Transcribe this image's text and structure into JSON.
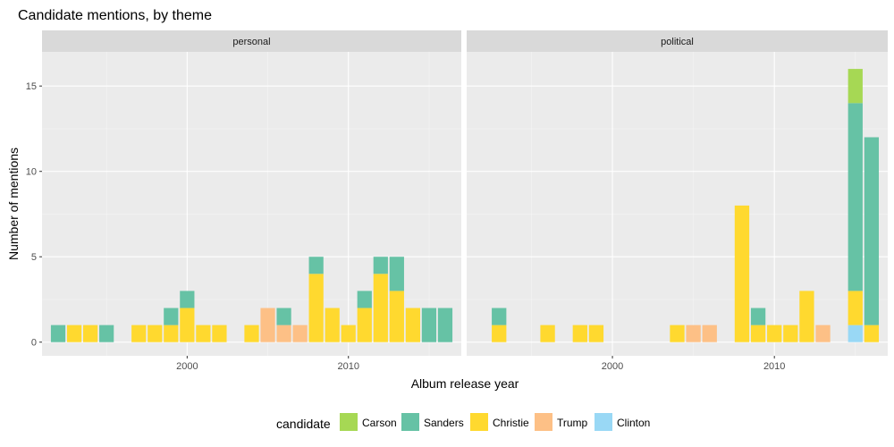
{
  "chart_data": {
    "type": "bar",
    "stacked": true,
    "title": "Candidate mentions, by theme",
    "xlabel": "Album release year",
    "ylabel": "Number of mentions",
    "xlim": [
      1991,
      2017
    ],
    "ylim": [
      -0.8,
      17
    ],
    "x_ticks": [
      2000,
      2010
    ],
    "y_ticks": [
      0,
      5,
      10,
      15
    ],
    "grid": true,
    "legend_position": "bottom",
    "legend_title": "candidate",
    "legend": [
      {
        "name": "Carson",
        "color": "#a6d854"
      },
      {
        "name": "Sanders",
        "color": "#66c2a5"
      },
      {
        "name": "Christie",
        "color": "#ffd92f"
      },
      {
        "name": "Trump",
        "color": "#fdc086"
      },
      {
        "name": "Clinton",
        "color": "#99d8f5"
      }
    ],
    "stack_order": [
      "Clinton",
      "Trump",
      "Christie",
      "Sanders",
      "Carson"
    ],
    "panels": [
      {
        "name": "personal",
        "bars": [
          {
            "year": 1992,
            "Sanders": 1
          },
          {
            "year": 1993,
            "Christie": 1
          },
          {
            "year": 1994,
            "Christie": 1
          },
          {
            "year": 1995,
            "Sanders": 1
          },
          {
            "year": 1997,
            "Christie": 1
          },
          {
            "year": 1998,
            "Christie": 1
          },
          {
            "year": 1999,
            "Christie": 1,
            "Sanders": 1
          },
          {
            "year": 2000,
            "Christie": 2,
            "Sanders": 1
          },
          {
            "year": 2001,
            "Christie": 1
          },
          {
            "year": 2002,
            "Christie": 1
          },
          {
            "year": 2004,
            "Christie": 1
          },
          {
            "year": 2005,
            "Trump": 2
          },
          {
            "year": 2006,
            "Trump": 1,
            "Sanders": 1
          },
          {
            "year": 2007,
            "Trump": 1
          },
          {
            "year": 2008,
            "Christie": 4,
            "Sanders": 1
          },
          {
            "year": 2009,
            "Christie": 2
          },
          {
            "year": 2010,
            "Christie": 1
          },
          {
            "year": 2011,
            "Christie": 2,
            "Sanders": 1
          },
          {
            "year": 2012,
            "Christie": 4,
            "Sanders": 1
          },
          {
            "year": 2013,
            "Christie": 3,
            "Sanders": 2
          },
          {
            "year": 2014,
            "Christie": 2
          },
          {
            "year": 2015,
            "Sanders": 2
          },
          {
            "year": 2016,
            "Sanders": 2
          }
        ]
      },
      {
        "name": "political",
        "bars": [
          {
            "year": 1993,
            "Christie": 1,
            "Sanders": 1
          },
          {
            "year": 1996,
            "Christie": 1
          },
          {
            "year": 1998,
            "Christie": 1
          },
          {
            "year": 1999,
            "Christie": 1
          },
          {
            "year": 2004,
            "Christie": 1
          },
          {
            "year": 2005,
            "Trump": 1
          },
          {
            "year": 2006,
            "Trump": 1
          },
          {
            "year": 2008,
            "Christie": 8
          },
          {
            "year": 2009,
            "Christie": 1,
            "Sanders": 1
          },
          {
            "year": 2010,
            "Christie": 1
          },
          {
            "year": 2011,
            "Christie": 1
          },
          {
            "year": 2012,
            "Christie": 3
          },
          {
            "year": 2013,
            "Trump": 1
          },
          {
            "year": 2015,
            "Clinton": 1,
            "Christie": 2,
            "Sanders": 11,
            "Carson": 2
          },
          {
            "year": 2016,
            "Christie": 1,
            "Sanders": 11
          }
        ]
      }
    ]
  }
}
